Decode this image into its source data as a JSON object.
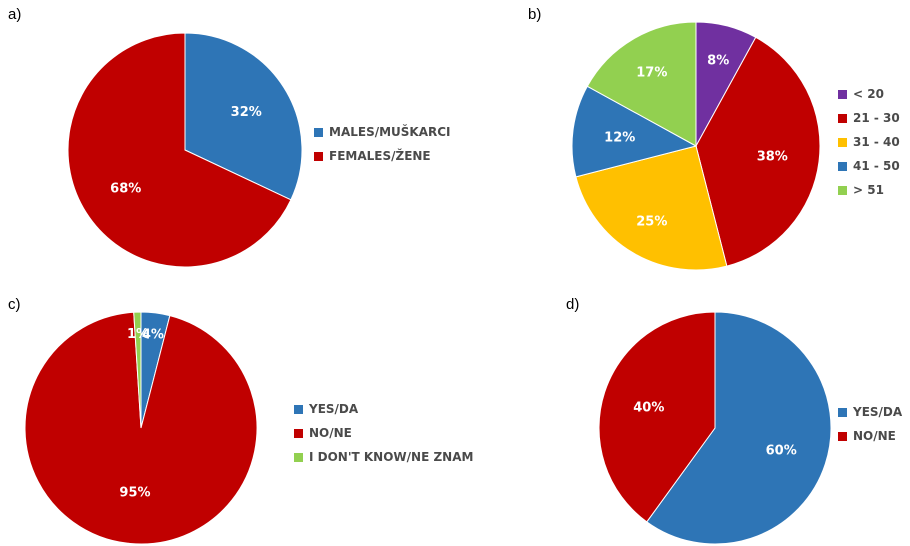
{
  "colors": {
    "blue": "#2e75b6",
    "red": "#c00000",
    "purple": "#7030a0",
    "yellow": "#ffc000",
    "green": "#92d050",
    "label_text": "#ffffff",
    "legend_text": "#4a4a4a"
  },
  "chart_data": [
    {
      "type": "pie",
      "panel_label": "a)",
      "series": [
        {
          "name": "MALES/MUŠKARCI",
          "value": 32,
          "label": "32%",
          "color": "#2e75b6"
        },
        {
          "name": "FEMALES/ŽENE",
          "value": 68,
          "label": "68%",
          "color": "#c00000"
        }
      ],
      "legend_placement": "right"
    },
    {
      "type": "pie",
      "panel_label": "b)",
      "series": [
        {
          "name": "< 20",
          "value": 8,
          "label": "8%",
          "color": "#7030a0"
        },
        {
          "name": "21 - 30",
          "value": 38,
          "label": "38%",
          "color": "#c00000"
        },
        {
          "name": "31 - 40",
          "value": 25,
          "label": "25%",
          "color": "#ffc000"
        },
        {
          "name": "41 - 50",
          "value": 12,
          "label": "12%",
          "color": "#2e75b6"
        },
        {
          "name": "> 51",
          "value": 17,
          "label": "17%",
          "color": "#92d050"
        }
      ],
      "legend_placement": "right"
    },
    {
      "type": "pie",
      "panel_label": "c)",
      "series": [
        {
          "name": "YES/DA",
          "value": 4,
          "label": "4%",
          "color": "#2e75b6"
        },
        {
          "name": "NO/NE",
          "value": 95,
          "label": "95%",
          "color": "#c00000"
        },
        {
          "name": "I DON'T KNOW/NE ZNAM",
          "value": 1,
          "label": "1%",
          "color": "#92d050"
        }
      ],
      "legend_placement": "right"
    },
    {
      "type": "pie",
      "panel_label": "d)",
      "series": [
        {
          "name": "YES/DA",
          "value": 60,
          "label": "60%",
          "color": "#2e75b6"
        },
        {
          "name": "NO/NE",
          "value": 40,
          "label": "40%",
          "color": "#c00000"
        }
      ],
      "legend_placement": "right"
    }
  ]
}
